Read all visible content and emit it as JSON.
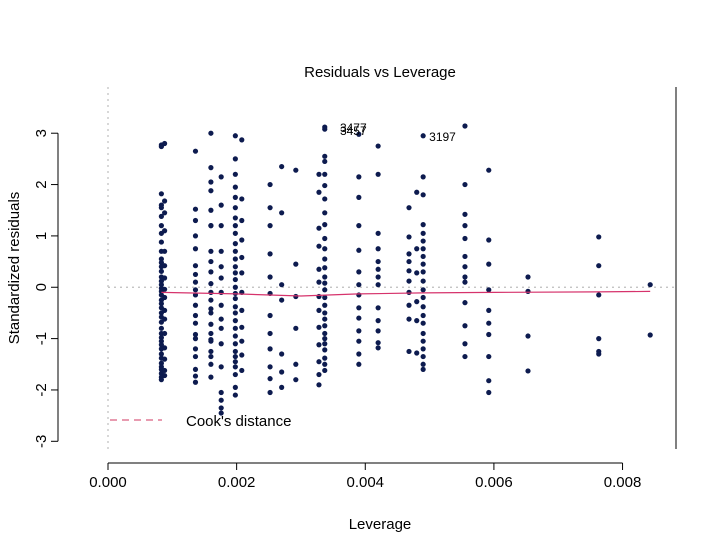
{
  "chart_data": {
    "type": "scatter",
    "title": "Residuals vs Leverage",
    "xlabel": "Leverage",
    "ylabel": "Standardized residuals",
    "xlim": [
      0,
      0.0088
    ],
    "ylim": [
      -3.15,
      3.9
    ],
    "x_ticks": [
      "0.000",
      "0.002",
      "0.004",
      "0.006",
      "0.008"
    ],
    "x_tick_values": [
      0,
      0.002,
      0.004,
      0.006,
      0.008
    ],
    "y_ticks": [
      "-3",
      "-2",
      "-1",
      "0",
      "1",
      "2",
      "3"
    ],
    "y_tick_values": [
      -3,
      -2,
      -1,
      0,
      1,
      2,
      3
    ],
    "grid": false,
    "point_color": "#0d1b4f",
    "trend_color": "#d6336c",
    "legend": {
      "position": "bottom-left",
      "label": "Cook's distance",
      "color": "#e07a95"
    },
    "reference_lines": [
      {
        "axis": "y",
        "value": 0
      },
      {
        "axis": "x",
        "value": 0
      }
    ],
    "annotations": [
      {
        "text": "3477",
        "x": 0.00555,
        "y": 3.14
      },
      {
        "text": "3457",
        "x": 0.00555,
        "y": 3.12
      },
      {
        "text": "3197",
        "x": 0.0049,
        "y": 2.95
      }
    ],
    "points": [
      {
        "x": 0.00083,
        "y": [
          2.77,
          2.74,
          1.82,
          1.6,
          1.55,
          1.38,
          1.2,
          1.05,
          0.88,
          0.7,
          0.55,
          0.48,
          0.4,
          0.31,
          0.2,
          0.12,
          0.05,
          -0.02,
          -0.08,
          -0.15,
          -0.25,
          -0.32,
          -0.4,
          -0.5,
          -0.58,
          -0.68,
          -0.8,
          -0.9,
          -0.98,
          -1.05,
          -1.12,
          -1.2,
          -1.3,
          -1.38,
          -1.48,
          -1.55,
          -1.6,
          -1.68,
          -1.75,
          -1.8
        ]
      },
      {
        "x": 0.00088,
        "y": [
          2.8,
          1.68,
          1.45,
          1.1,
          0.7,
          0.42,
          0.18,
          -0.04,
          -0.2,
          -0.45,
          -0.62,
          -0.9,
          -1.18,
          -1.4,
          -1.62,
          -1.72
        ]
      },
      {
        "x": 0.00136,
        "y": [
          2.65,
          1.52,
          1.3,
          1.0,
          0.75,
          0.42,
          0.25,
          0.1,
          -0.05,
          -0.15,
          -0.35,
          -0.55,
          -0.7,
          -0.92,
          -1.0,
          -1.2,
          -1.35,
          -1.6,
          -1.73,
          -1.85
        ]
      },
      {
        "x": 0.0016,
        "y": [
          3.0,
          2.33,
          2.05,
          1.88,
          1.5,
          1.2,
          1.2,
          0.7,
          0.5,
          0.3,
          0.07,
          -0.1,
          -0.25,
          -0.42,
          -0.5,
          -0.72,
          -0.9,
          -1.02,
          -1.05,
          -1.25,
          -1.35,
          -1.5,
          -1.75
        ]
      },
      {
        "x": 0.00176,
        "y": [
          2.15,
          1.6,
          1.2,
          0.7,
          0.4,
          0.18,
          -0.1,
          -0.35,
          -0.62,
          -0.8,
          -1.1,
          -1.55,
          -2.05,
          -2.2,
          -2.35,
          -2.45
        ]
      },
      {
        "x": 0.00198,
        "y": [
          2.95,
          2.5,
          2.2,
          1.95,
          1.75,
          1.55,
          1.35,
          1.2,
          1.05,
          0.85,
          0.7,
          0.55,
          0.4,
          0.28,
          0.15,
          0.0,
          -0.12,
          -0.22,
          -0.38,
          -0.5,
          -0.65,
          -0.8,
          -0.95,
          -1.1,
          -1.25,
          -1.35,
          -1.45,
          -1.55,
          -1.7,
          -1.95,
          -2.1
        ]
      },
      {
        "x": 0.00208,
        "y": [
          2.87,
          1.72,
          1.3,
          0.92,
          0.58,
          0.28,
          -0.1,
          -0.45,
          -0.78,
          -1.05,
          -1.32,
          -1.62
        ]
      },
      {
        "x": 0.00252,
        "y": [
          2.0,
          1.55,
          1.2,
          0.65,
          0.2,
          -0.12,
          -0.55,
          -0.9,
          -1.2,
          -1.55,
          -1.78,
          -2.05
        ]
      },
      {
        "x": 0.0027,
        "y": [
          2.35,
          1.45,
          0.05,
          -0.25,
          -1.3,
          -1.65,
          -1.95
        ]
      },
      {
        "x": 0.00292,
        "y": [
          2.28,
          0.45,
          -0.18,
          -0.8,
          -1.5,
          -1.8
        ]
      },
      {
        "x": 0.00328,
        "y": [
          2.2,
          1.85,
          1.15,
          0.8,
          0.35,
          0.1,
          -0.18,
          -0.45,
          -0.78,
          -1.12,
          -1.45,
          -1.7,
          -1.9
        ]
      },
      {
        "x": 0.00337,
        "y": [
          3.12,
          3.08,
          2.55,
          2.45,
          2.2,
          1.98,
          1.72,
          1.45,
          1.22,
          0.95,
          0.75,
          0.55,
          0.38,
          0.2,
          0.08,
          -0.05,
          -0.2,
          -0.35,
          -0.5,
          -0.62,
          -0.75,
          -0.9,
          -1.0,
          -1.1,
          -1.22,
          -1.38,
          -1.5,
          -1.62
        ]
      },
      {
        "x": 0.0039,
        "y": [
          2.98,
          2.15,
          1.75,
          1.2,
          0.72,
          0.3,
          0.05,
          -0.15,
          -0.4,
          -0.6,
          -0.85,
          -1.05,
          -1.3,
          -1.5
        ]
      },
      {
        "x": 0.0042,
        "y": [
          2.75,
          2.2,
          1.05,
          0.75,
          0.5,
          0.35,
          0.2,
          0.05,
          -0.4,
          -0.65,
          -0.85,
          -1.08,
          -1.18
        ]
      },
      {
        "x": 0.00468,
        "y": [
          1.55,
          0.98,
          0.65,
          0.5,
          0.32,
          0.12,
          -0.1,
          -0.35,
          -0.62,
          -1.25
        ]
      },
      {
        "x": 0.0048,
        "y": [
          1.85,
          0.75,
          0.28,
          -0.28,
          -0.65,
          -1.28
        ]
      },
      {
        "x": 0.0049,
        "y": [
          2.95,
          2.15,
          1.8,
          1.22,
          1.05,
          0.9,
          0.75,
          0.6,
          0.45,
          0.3,
          0.12,
          -0.05,
          -0.2,
          -0.38,
          -0.55,
          -0.7,
          -0.9,
          -1.05,
          -1.2,
          -1.35,
          -1.5,
          -1.6
        ]
      },
      {
        "x": 0.00555,
        "y": [
          3.14,
          2.0,
          1.42,
          1.2,
          0.95,
          0.6,
          0.4,
          0.2,
          0.1,
          -0.3,
          -0.75,
          -1.1,
          -1.35
        ]
      },
      {
        "x": 0.00592,
        "y": [
          2.28,
          0.92,
          0.45,
          -0.05,
          -0.45,
          -0.7,
          -0.92,
          -1.35,
          -1.82,
          -2.05
        ]
      },
      {
        "x": 0.00653,
        "y": [
          0.2,
          -0.08,
          -0.95,
          -1.63
        ]
      },
      {
        "x": 0.00763,
        "y": [
          0.98,
          0.42,
          -0.15,
          -1.0,
          -1.25,
          -1.3
        ]
      },
      {
        "x": 0.00843,
        "y": [
          0.05,
          -0.93
        ]
      }
    ],
    "trend": [
      {
        "x": 0.00083,
        "y": -0.1
      },
      {
        "x": 0.002,
        "y": -0.13
      },
      {
        "x": 0.003,
        "y": -0.17
      },
      {
        "x": 0.0039,
        "y": -0.13
      },
      {
        "x": 0.0049,
        "y": -0.11
      },
      {
        "x": 0.006,
        "y": -0.1
      },
      {
        "x": 0.0076,
        "y": -0.09
      },
      {
        "x": 0.00843,
        "y": -0.08
      }
    ]
  }
}
